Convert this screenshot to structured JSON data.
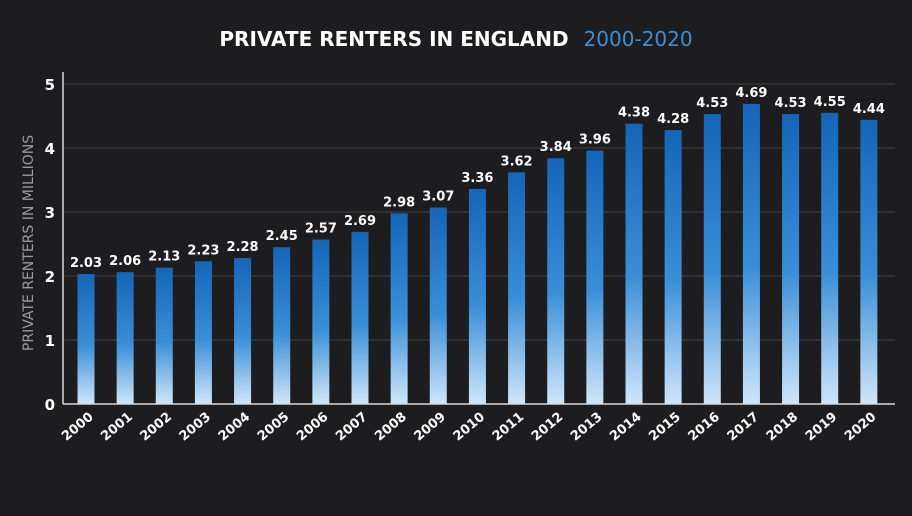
{
  "colors": {
    "background": "#1d1d1f",
    "title": "#ffffff",
    "title_accent": "#3d8fd1",
    "bar_top": "#1565b8",
    "bar_bottom": "#cfe6fb",
    "axis": "#d8d8d8",
    "grid": "#444444",
    "label": "#ffffff",
    "ylabel": "#9a9a9a"
  },
  "chart_data": {
    "type": "bar",
    "title": "PRIVATE RENTERS IN ENGLAND",
    "subtitle": "2000-2020",
    "xlabel": "",
    "ylabel": "PRIVATE RENTERS IN MILLIONS",
    "ylim": [
      0,
      5
    ],
    "yticks": [
      "0",
      "1",
      "2",
      "3",
      "4",
      "5"
    ],
    "grid": true,
    "categories": [
      "2000",
      "2001",
      "2002",
      "2003",
      "2004",
      "2005",
      "2006",
      "2007",
      "2008",
      "2009",
      "2010",
      "2011",
      "2012",
      "2013",
      "2014",
      "2015",
      "2016",
      "2017",
      "2018",
      "2019",
      "2020"
    ],
    "values": [
      2.03,
      2.06,
      2.13,
      2.23,
      2.28,
      2.45,
      2.57,
      2.69,
      2.98,
      3.07,
      3.36,
      3.62,
      3.84,
      3.96,
      4.38,
      4.28,
      4.53,
      4.69,
      4.53,
      4.55,
      4.44
    ],
    "value_labels": [
      "2.03",
      "2.06",
      "2.13",
      "2.23",
      "2.28",
      "2.45",
      "2.57",
      "2.69",
      "2.98",
      "3.07",
      "3.36",
      "3.62",
      "3.84",
      "3.96",
      "4.38",
      "4.28",
      "4.53",
      "4.69",
      "4.53",
      "4.55",
      "4.44"
    ]
  }
}
